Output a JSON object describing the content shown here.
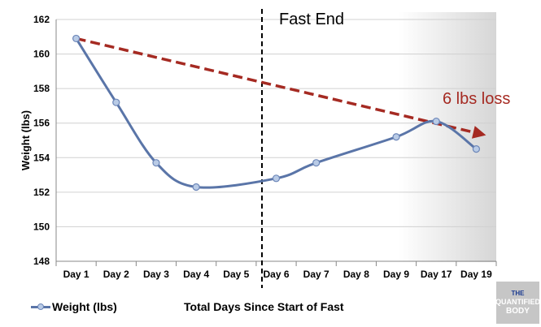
{
  "chart_data": {
    "type": "line",
    "xlabel": "Total Days Since Start of Fast",
    "ylabel": "Weight (lbs)",
    "ylim": [
      148,
      162
    ],
    "yticks": [
      148,
      150,
      152,
      154,
      156,
      158,
      160,
      162
    ],
    "categories": [
      "Day 1",
      "Day 2",
      "Day 3",
      "Day 4",
      "Day 5",
      "Day 6",
      "Day 7",
      "Day 8",
      "Day 9",
      "Day 17",
      "Day 19"
    ],
    "grid": true,
    "legend_position": "bottom-left",
    "series": [
      {
        "name": "Weight (lbs)",
        "color": "#5a75a8",
        "x": [
          0,
          1,
          2,
          3,
          5,
          6,
          8,
          9,
          10
        ],
        "values": [
          160.9,
          157.2,
          153.7,
          152.3,
          152.8,
          153.7,
          155.2,
          156.1,
          154.5
        ]
      }
    ],
    "annotations": [
      {
        "type": "vline",
        "after_category": "Day 5",
        "label": "Fast End"
      },
      {
        "type": "trend-arrow",
        "from": [
          0,
          160.9
        ],
        "to": [
          10,
          155.3
        ],
        "color": "#a52a22",
        "label": "6 lbs loss"
      }
    ],
    "shading": {
      "from_category": "Day 9",
      "color": "#d9d9d9"
    }
  },
  "legend_label": "Weight (lbs)",
  "logo": {
    "line1": "THE",
    "line2": "QUANTIFIED",
    "line3": "BODY"
  }
}
